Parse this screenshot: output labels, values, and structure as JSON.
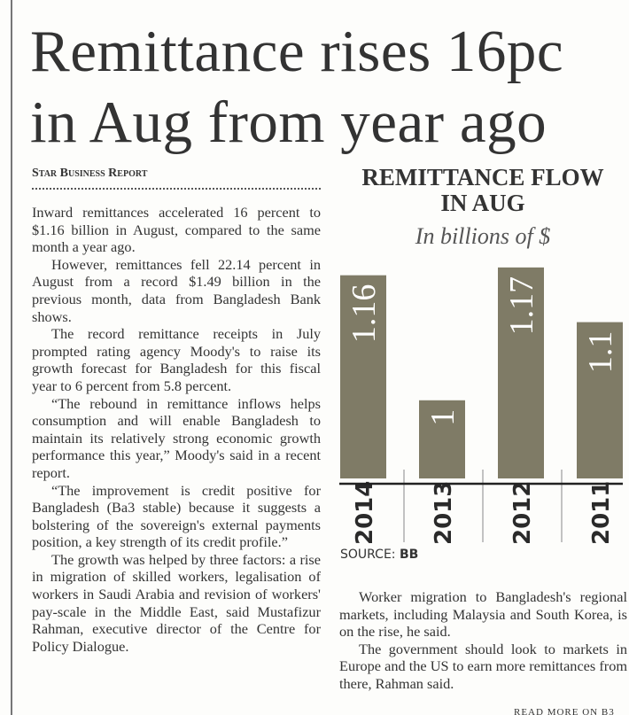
{
  "headline": {
    "line1": "Remittance rises 16pc",
    "line2": "in Aug from year ago"
  },
  "byline": "Star Business Report",
  "left_column": [
    "Inward remittances accelerated 16 percent to $1.16 billion in August, compared to the same month a year ago.",
    "However, remittances fell 22.14 percent in August from a record $1.49 billion in the previous month, data from Bangladesh Bank shows.",
    "The record remittance receipts in July prompted rating agency Moody's to raise its growth forecast for Bangladesh for this fiscal year to 6 percent from 5.8 percent.",
    "“The rebound in remittance inflows helps consumption and will enable Bangladesh to maintain its relatively strong economic growth performance this year,” Moody's said in a recent report.",
    "“The improvement is credit positive for Bangladesh (Ba3 stable) because it suggests a bolstering of the sovereign's external payments position, a key strength of its credit profile.”",
    "The growth was helped by three factors: a rise in migration of skilled workers, legalisation of workers in Saudi Arabia and revision of workers' pay-scale in the Middle East, said Mustafizur Rahman, executive director of the Centre for Policy Dialogue."
  ],
  "right_column": [
    "Worker migration to Bangladesh's regional markets, including Malaysia and South Korea, is on the rise, he said.",
    "The government should look to markets in Europe and the US to earn more remittances from there, Rahman said."
  ],
  "read_more": "READ MORE ON B3",
  "chart_data": {
    "type": "bar",
    "title": "REMITTANCE FLOW IN AUG",
    "title_lines": [
      "REMITTANCE FLOW",
      "IN AUG"
    ],
    "subtitle": "In billions of $",
    "categories": [
      "2014",
      "2013",
      "2012",
      "2011"
    ],
    "values": [
      1.16,
      1,
      1.17,
      1.1
    ],
    "data_labels": [
      "1.16",
      "1",
      "1.17",
      "1.1"
    ],
    "source_label": "SOURCE:",
    "source": "BB",
    "bar_color": "#7f7b66",
    "grid": false,
    "legend": "none"
  }
}
